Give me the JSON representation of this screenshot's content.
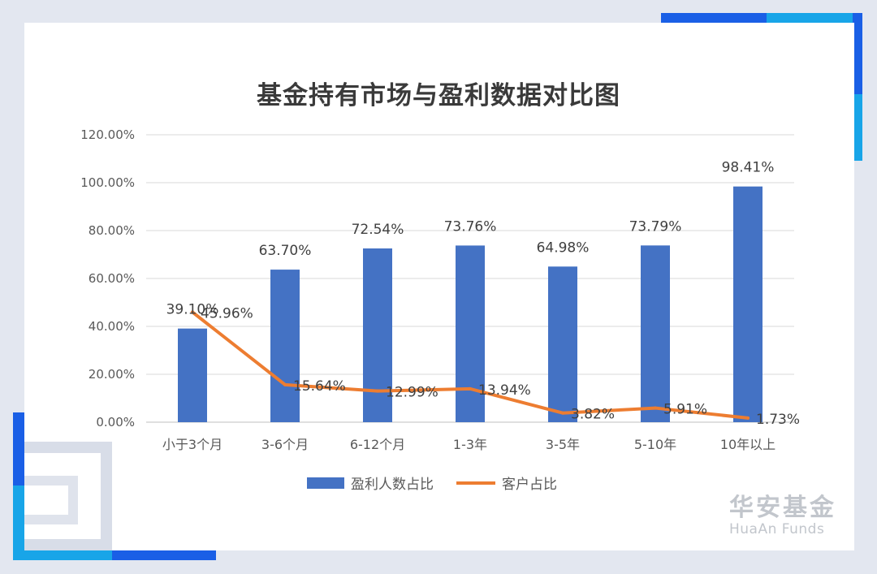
{
  "chart_data": {
    "type": "bar",
    "title": "基金持有市场与盈利数据对比图",
    "categories": [
      "小于3个月",
      "3-6个月",
      "6-12个月",
      "1-3年",
      "3-5年",
      "5-10年",
      "10年以上"
    ],
    "series": [
      {
        "name": "盈利人数占比",
        "type": "bar",
        "color": "#4472c4",
        "values": [
          39.1,
          63.7,
          72.54,
          73.76,
          64.98,
          73.79,
          98.41
        ],
        "labels": [
          "39.10%",
          "63.70%",
          "72.54%",
          "73.76%",
          "64.98%",
          "73.79%",
          "98.41%"
        ]
      },
      {
        "name": "客户占比",
        "type": "line",
        "color": "#ed7d31",
        "values": [
          45.96,
          15.64,
          12.99,
          13.94,
          3.82,
          5.91,
          1.73
        ],
        "labels": [
          "45.96%",
          "15.64%",
          "12.99%",
          "13.94%",
          "3.82%",
          "5.91%",
          "1.73%"
        ]
      }
    ],
    "ylim": [
      0,
      120
    ],
    "yticks": [
      "0.00%",
      "20.00%",
      "40.00%",
      "60.00%",
      "80.00%",
      "100.00%",
      "120.00%"
    ],
    "grid": true,
    "legend_position": "bottom",
    "xlabel": "",
    "ylabel": ""
  },
  "logo": {
    "cn": "华安基金",
    "en": "HuaAn Funds"
  },
  "colors": {
    "accent_blue": "#1a5fe6",
    "accent_cyan": "#18a5e8",
    "deco_gray": "#d5dbe6"
  }
}
